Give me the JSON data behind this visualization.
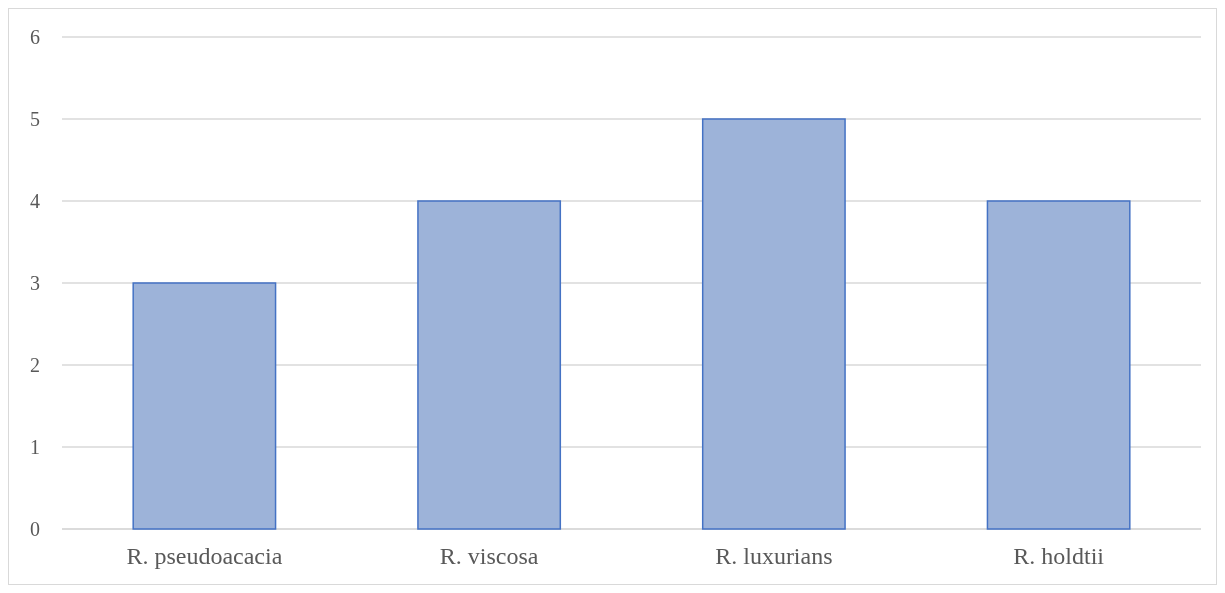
{
  "chart_data": {
    "type": "bar",
    "categories": [
      "R. pseudoacacia",
      "R. viscosa",
      "R. luxurians",
      "R. holdtii"
    ],
    "values": [
      3,
      4,
      5,
      4
    ],
    "color": "#9db3d9",
    "ylim": [
      0,
      6
    ],
    "yticks": [
      0,
      1,
      2,
      3,
      4,
      5,
      6
    ],
    "grid": "y"
  }
}
